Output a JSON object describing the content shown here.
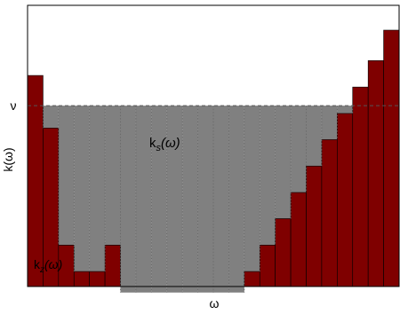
{
  "chart_data": {
    "type": "bar",
    "xlabel": "ω",
    "ylabel": "k(ω)",
    "nu_tick_label": "ν",
    "nu_level": 0.72,
    "ylim": [
      0,
      1
    ],
    "grid": false,
    "bar_values": [
      0.832,
      0.637,
      0.203,
      0.105,
      0.105,
      0.203,
      0.027,
      0.027,
      0.027,
      0.027,
      0.027,
      0.027,
      0.027,
      0.027,
      0.105,
      0.203,
      0.301,
      0.398,
      0.496,
      0.594,
      0.691,
      0.789,
      0.887,
      1.0
    ],
    "series": [
      {
        "name": "k_z(ω)",
        "label_main": "k",
        "label_sub": "z",
        "label_tail": "(ω)",
        "color": "#7f0000"
      },
      {
        "name": "k_s(ω)",
        "label_main": "k",
        "label_sub": "s",
        "label_tail": "(ω)",
        "color": "#808080"
      }
    ]
  }
}
